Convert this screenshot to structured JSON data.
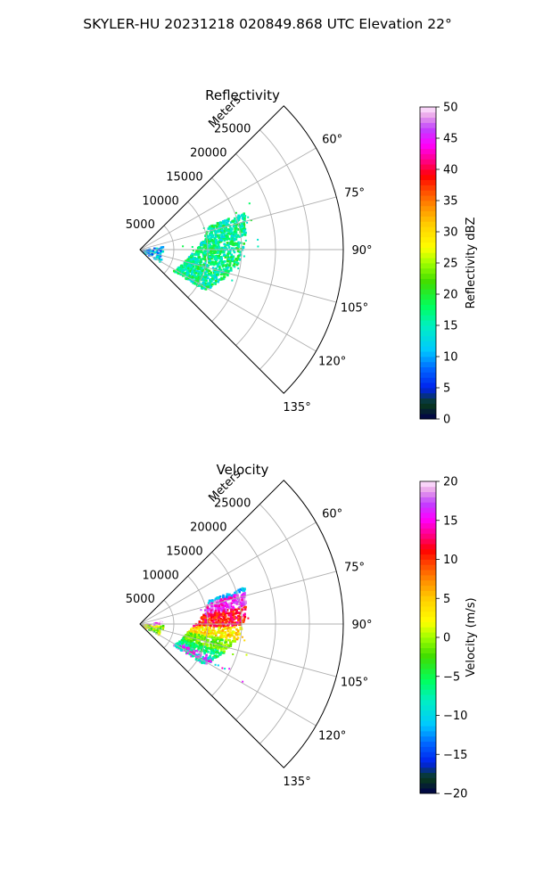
{
  "figure_title": "SKYLER-HU  20231218  020849.868 UTC Elevation 22°",
  "chart_data": [
    {
      "type": "polar-sector",
      "title": "Reflectivity",
      "radial_axis_label": "Meters",
      "radial_ticks": [
        "5000",
        "10000",
        "15000",
        "20000",
        "25000"
      ],
      "radial_range": [
        0,
        30000
      ],
      "azimuth_range": [
        45,
        135
      ],
      "azimuth_ticks": [
        "60°",
        "75°",
        "90°",
        "105°",
        "120°",
        "135°"
      ],
      "grid": true,
      "colorbar": {
        "label": "Reflectivity dBZ",
        "range": [
          0,
          50
        ],
        "ticks": [
          "0",
          "5",
          "10",
          "15",
          "20",
          "25",
          "30",
          "35",
          "40",
          "45",
          "50"
        ]
      }
    },
    {
      "type": "polar-sector",
      "title": "Velocity",
      "radial_axis_label": "Meters",
      "radial_ticks": [
        "5000",
        "10000",
        "15000",
        "20000",
        "25000"
      ],
      "radial_range": [
        0,
        30000
      ],
      "azimuth_range": [
        45,
        135
      ],
      "azimuth_ticks": [
        "60°",
        "75°",
        "90°",
        "105°",
        "120°",
        "135°"
      ],
      "grid": true,
      "colorbar": {
        "label": "Velocity (m/s)",
        "range": [
          -20,
          20
        ],
        "ticks": [
          "−20",
          "−15",
          "−10",
          "−5",
          "0",
          "5",
          "10",
          "15",
          "20"
        ]
      }
    }
  ]
}
